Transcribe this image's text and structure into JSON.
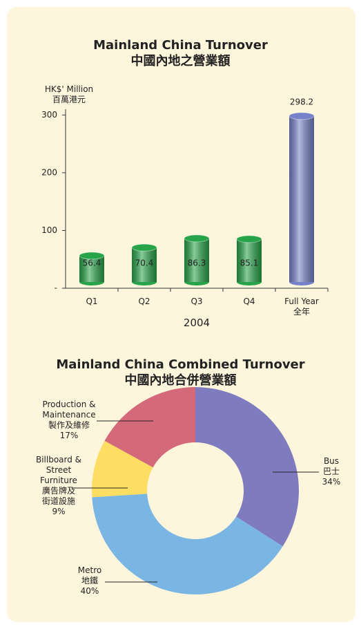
{
  "chart_data": [
    {
      "type": "bar",
      "title": "Mainland China Turnover",
      "subtitle": "中國內地之營業額",
      "ylabel": "HK$' Million\n百萬港元",
      "xlabel": "2004",
      "categories": [
        "Q1",
        "Q2",
        "Q3",
        "Q4",
        "Full Year\n全年"
      ],
      "values": [
        56.4,
        70.4,
        86.3,
        85.1,
        298.2
      ],
      "colors": [
        "#27a449",
        "#27a449",
        "#27a449",
        "#27a449",
        "#7581c8"
      ],
      "ylim": [
        0,
        310
      ],
      "yticks": [
        {
          "value": 0,
          "label": "-"
        },
        100,
        200,
        300
      ]
    },
    {
      "type": "donut",
      "title": "Mainland China Combined Turnover",
      "subtitle": "中國內地合併營業額",
      "categories": [
        "Bus\n巴士",
        "Metro\n地鐵",
        "Billboard &\nStreet\nFurniture\n廣告牌及\n街道設施",
        "Production &\nMaintenance\n製作及維修"
      ],
      "values": [
        34,
        40,
        9,
        17
      ],
      "value_labels": [
        "34%",
        "40%",
        "9%",
        "17%"
      ],
      "colors": [
        "#7f7bbf",
        "#7ab6e3",
        "#fedd63",
        "#d4697a"
      ]
    }
  ]
}
